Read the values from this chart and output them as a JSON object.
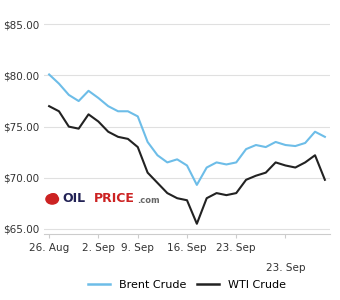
{
  "brent_x": [
    0,
    1,
    2,
    3,
    4,
    5,
    6,
    7,
    8,
    9,
    10,
    11,
    12,
    13,
    14,
    15,
    16,
    17,
    18,
    19,
    20,
    21,
    22,
    23,
    24,
    25,
    26,
    27,
    28
  ],
  "brent_y": [
    80.1,
    79.2,
    78.1,
    77.5,
    78.5,
    77.8,
    77.0,
    76.5,
    76.5,
    76.0,
    73.5,
    72.2,
    71.5,
    71.8,
    71.2,
    69.3,
    71.0,
    71.5,
    71.3,
    71.5,
    72.8,
    73.2,
    73.0,
    73.5,
    73.2,
    73.1,
    73.4,
    74.5,
    74.0
  ],
  "wti_x": [
    0,
    1,
    2,
    3,
    4,
    5,
    6,
    7,
    8,
    9,
    10,
    11,
    12,
    13,
    14,
    15,
    16,
    17,
    18,
    19,
    20,
    21,
    22,
    23,
    24,
    25,
    26,
    27,
    28
  ],
  "wti_y": [
    77.0,
    76.5,
    75.0,
    74.8,
    76.2,
    75.5,
    74.5,
    74.0,
    73.8,
    73.0,
    70.5,
    69.5,
    68.5,
    68.0,
    67.8,
    65.5,
    68.0,
    68.5,
    68.3,
    68.5,
    69.8,
    70.2,
    70.5,
    71.5,
    71.2,
    71.0,
    71.5,
    72.2,
    69.8
  ],
  "xtick_positions": [
    0,
    5,
    9,
    14,
    19,
    24
  ],
  "xtick_labels": [
    "26. Aug",
    "2. Sep",
    "9. Sep",
    "16. Sep",
    "23. Sep",
    ""
  ],
  "ytick_positions": [
    65,
    70,
    75,
    80,
    85
  ],
  "ytick_labels": [
    "$65.00",
    "$70.00",
    "$75.00",
    "$80.00",
    "$85.00"
  ],
  "ylim": [
    64.5,
    86.5
  ],
  "xlim": [
    -0.5,
    28.5
  ],
  "brent_color": "#6dbde8",
  "wti_color": "#222222",
  "grid_color": "#e0e0e0",
  "background_color": "#ffffff",
  "legend_brent": "Brent Crude",
  "legend_wti": "WTI Crude",
  "oilprice_text_oil": "OIL",
  "oilprice_text_price": "PRICE",
  "oilprice_text_com": ".com"
}
